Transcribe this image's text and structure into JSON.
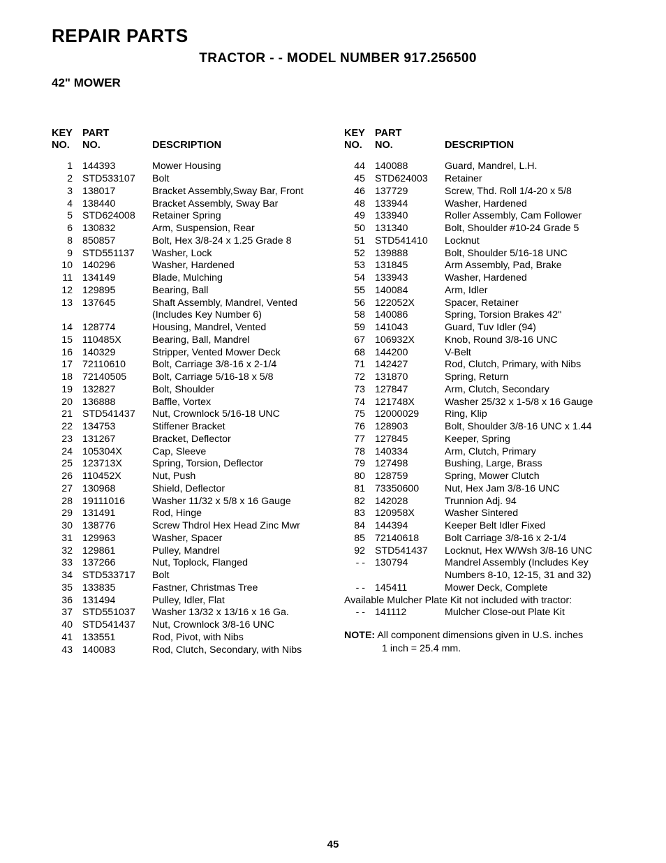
{
  "title": "REPAIR PARTS",
  "subtitle": "TRACTOR - - MODEL NUMBER 917.256500",
  "section": "42\" MOWER",
  "headers": {
    "key1": "KEY",
    "key2": "NO.",
    "part1": "PART",
    "part2": "NO.",
    "desc": "DESCRIPTION"
  },
  "left": [
    {
      "k": "1",
      "p": "144393",
      "d": "Mower Housing"
    },
    {
      "k": "2",
      "p": "STD533107",
      "d": "Bolt"
    },
    {
      "k": "3",
      "p": "138017",
      "d": "Bracket Assembly,Sway Bar, Front"
    },
    {
      "k": "4",
      "p": "138440",
      "d": "Bracket Assembly, Sway Bar"
    },
    {
      "k": "5",
      "p": "STD624008",
      "d": "Retainer Spring"
    },
    {
      "k": "6",
      "p": "130832",
      "d": "Arm, Suspension, Rear"
    },
    {
      "k": "8",
      "p": "850857",
      "d": "Bolt, Hex  3/8-24 x 1.25 Grade 8"
    },
    {
      "k": "9",
      "p": "STD551137",
      "d": "Washer, Lock"
    },
    {
      "k": "10",
      "p": "140296",
      "d": "Washer, Hardened"
    },
    {
      "k": "11",
      "p": "134149",
      "d": "Blade, Mulching"
    },
    {
      "k": "12",
      "p": "129895",
      "d": "Bearing, Ball"
    },
    {
      "k": "13",
      "p": "137645",
      "d": "Shaft Assembly, Mandrel, Vented"
    },
    {
      "k": "",
      "p": "",
      "d": "(Includes Key Number 6)"
    },
    {
      "k": "14",
      "p": "128774",
      "d": "Housing, Mandrel, Vented"
    },
    {
      "k": "15",
      "p": "110485X",
      "d": "Bearing, Ball, Mandrel"
    },
    {
      "k": "16",
      "p": "140329",
      "d": "Stripper, Vented Mower Deck"
    },
    {
      "k": "17",
      "p": "72110610",
      "d": "Bolt, Carriage  3/8-16 x 2-1/4"
    },
    {
      "k": "18",
      "p": "72140505",
      "d": "Bolt, Carriage  5/16-18 x 5/8"
    },
    {
      "k": "19",
      "p": "132827",
      "d": "Bolt, Shoulder"
    },
    {
      "k": "20",
      "p": "136888",
      "d": "Baffle, Vortex"
    },
    {
      "k": "21",
      "p": "STD541437",
      "d": "Nut, Crownlock 5/16-18 UNC"
    },
    {
      "k": "22",
      "p": "134753",
      "d": "Stiffener Bracket"
    },
    {
      "k": "23",
      "p": "131267",
      "d": "Bracket, Deflector"
    },
    {
      "k": "24",
      "p": "105304X",
      "d": "Cap, Sleeve"
    },
    {
      "k": "25",
      "p": "123713X",
      "d": "Spring, Torsion, Deflector"
    },
    {
      "k": "26",
      "p": "110452X",
      "d": "Nut, Push"
    },
    {
      "k": "27",
      "p": "130968",
      "d": "Shield, Deflector"
    },
    {
      "k": "28",
      "p": "19111016",
      "d": "Washer  11/32 x 5/8 x 16 Gauge"
    },
    {
      "k": "29",
      "p": "131491",
      "d": "Rod, Hinge"
    },
    {
      "k": "30",
      "p": "138776",
      "d": "Screw Thdrol Hex Head Zinc Mwr"
    },
    {
      "k": "31",
      "p": "129963",
      "d": "Washer, Spacer"
    },
    {
      "k": "32",
      "p": "129861",
      "d": "Pulley, Mandrel"
    },
    {
      "k": "33",
      "p": "137266",
      "d": "Nut, Toplock, Flanged"
    },
    {
      "k": "34",
      "p": "STD533717",
      "d": "Bolt"
    },
    {
      "k": "35",
      "p": "133835",
      "d": "Fastner, Christmas Tree"
    },
    {
      "k": "36",
      "p": "131494",
      "d": "Pulley, Idler, Flat"
    },
    {
      "k": "37",
      "p": "STD551037",
      "d": "Washer  13/32 x 13/16 x 16 Ga."
    },
    {
      "k": "40",
      "p": "STD541437",
      "d": "Nut, Crownlock 3/8-16 UNC"
    },
    {
      "k": "41",
      "p": "133551",
      "d": "Rod, Pivot, with Nibs"
    },
    {
      "k": "43",
      "p": "140083",
      "d": "Rod, Clutch, Secondary, with Nibs"
    }
  ],
  "right": [
    {
      "k": "44",
      "p": "140088",
      "d": "Guard, Mandrel, L.H."
    },
    {
      "k": "45",
      "p": "STD624003",
      "d": "Retainer"
    },
    {
      "k": "46",
      "p": "137729",
      "d": "Screw, Thd. Roll  1/4-20 x 5/8"
    },
    {
      "k": "48",
      "p": "133944",
      "d": "Washer, Hardened"
    },
    {
      "k": "49",
      "p": "133940",
      "d": "Roller Assembly, Cam Follower"
    },
    {
      "k": "50",
      "p": "131340",
      "d": "Bolt, Shoulder  #10-24 Grade 5"
    },
    {
      "k": "51",
      "p": "STD541410",
      "d": "Locknut"
    },
    {
      "k": "52",
      "p": "139888",
      "d": "Bolt, Shoulder  5/16-18 UNC"
    },
    {
      "k": "53",
      "p": "131845",
      "d": "Arm Assembly, Pad, Brake"
    },
    {
      "k": "54",
      "p": "133943",
      "d": "Washer, Hardened"
    },
    {
      "k": "55",
      "p": "140084",
      "d": "Arm, Idler"
    },
    {
      "k": "56",
      "p": "122052X",
      "d": "Spacer, Retainer"
    },
    {
      "k": "58",
      "p": "140086",
      "d": "Spring, Torsion Brakes 42\""
    },
    {
      "k": "59",
      "p": "141043",
      "d": "Guard, Tuv Idler (94)"
    },
    {
      "k": "67",
      "p": "106932X",
      "d": "Knob, Round  3/8-16 UNC"
    },
    {
      "k": "68",
      "p": "144200",
      "d": "V-Belt"
    },
    {
      "k": "71",
      "p": "142427",
      "d": "Rod, Clutch, Primary, with Nibs"
    },
    {
      "k": "72",
      "p": "131870",
      "d": "Spring, Return"
    },
    {
      "k": "73",
      "p": "127847",
      "d": "Arm, Clutch, Secondary"
    },
    {
      "k": "74",
      "p": "121748X",
      "d": "Washer  25/32 x 1-5/8 x 16 Gauge"
    },
    {
      "k": "75",
      "p": "12000029",
      "d": "Ring, Klip"
    },
    {
      "k": "76",
      "p": "128903",
      "d": "Bolt, Shoulder  3/8-16 UNC x 1.44"
    },
    {
      "k": "77",
      "p": "127845",
      "d": "Keeper, Spring"
    },
    {
      "k": "78",
      "p": "140334",
      "d": "Arm, Clutch, Primary"
    },
    {
      "k": "79",
      "p": "127498",
      "d": "Bushing, Large, Brass"
    },
    {
      "k": "80",
      "p": "128759",
      "d": "Spring, Mower Clutch"
    },
    {
      "k": "81",
      "p": "73350600",
      "d": "Nut, Hex Jam  3/8-16 UNC"
    },
    {
      "k": "82",
      "p": "142028",
      "d": "Trunnion Adj. 94"
    },
    {
      "k": "83",
      "p": "120958X",
      "d": "Washer Sintered"
    },
    {
      "k": "84",
      "p": "144394",
      "d": "Keeper Belt Idler Fixed"
    },
    {
      "k": "85",
      "p": "72140618",
      "d": "Bolt Carriage 3/8-16 x 2-1/4"
    },
    {
      "k": "92",
      "p": "STD541437",
      "d": "Locknut, Hex W/Wsh 3/8-16 UNC"
    },
    {
      "k": "- -",
      "p": "130794",
      "d": "Mandrel Assembly (Includes Key"
    },
    {
      "k": "",
      "p": "",
      "d": "Numbers 8-10, 12-15, 31 and 32)"
    },
    {
      "k": "- -",
      "p": "145411",
      "d": "Mower Deck, Complete"
    }
  ],
  "avail_line": "Available Mulcher Plate Kit not included with tractor:",
  "avail_row": {
    "k": "- -",
    "p": "141112",
    "d": "Mulcher Close-out Plate Kit"
  },
  "note_label": "NOTE:",
  "note_text": "All component dimensions given in U.S. inches",
  "note_sub": "1 inch = 25.4 mm.",
  "page_number": "45"
}
